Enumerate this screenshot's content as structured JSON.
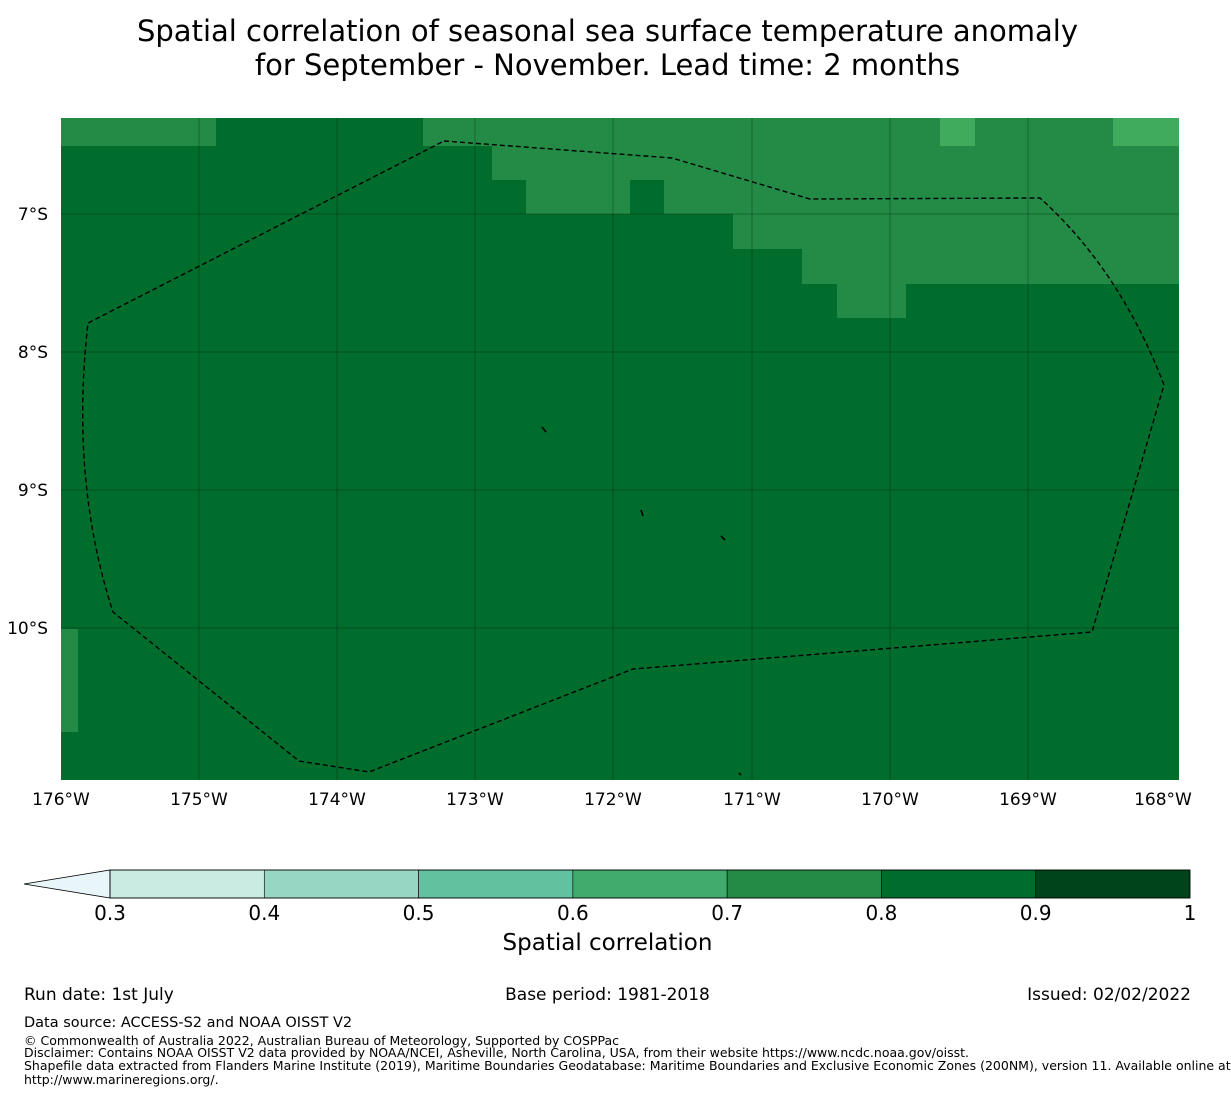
{
  "title_line1": "Spatial correlation of seasonal sea surface temperature anomaly",
  "title_line2": "for September - November. Lead time: 2 months",
  "map": {
    "lat_labels": [
      "7°S",
      "8°S",
      "9°S",
      "10°S"
    ],
    "lon_labels": [
      "176°W",
      "175°W",
      "174°W",
      "173°W",
      "172°W",
      "171°W",
      "170°W",
      "169°W",
      "168°W"
    ],
    "lat_range": [
      -11.1,
      -6.3
    ],
    "lon_range": [
      -176.0,
      -167.9
    ],
    "colors": {
      "corr_0_8_0_9": "#006d2c",
      "corr_0_7_0_8": "#238b45",
      "corr_0_6_0_7": "#41ab5d"
    }
  },
  "colorbar": {
    "ticks": [
      "0.3",
      "0.4",
      "0.5",
      "0.6",
      "0.7",
      "0.8",
      "0.9",
      "1"
    ],
    "colors": [
      "#c9ebe2",
      "#97d6c3",
      "#62c2a0",
      "#41ab6d",
      "#238b45",
      "#006d2c",
      "#00441b"
    ],
    "extend_color": "#e8f5f9",
    "label": "Spatial correlation"
  },
  "footer": {
    "run_date": "Run date: 1st July",
    "base_period": "Base period: 1981-2018",
    "issued": "Issued: 02/02/2022",
    "data_source": "Data source: ACCESS-S2 and NOAA OISST V2",
    "copyright": "© Commonwealth of Australia 2022, Australian Bureau of Meteorology, Supported by COSPPac",
    "disclaimer": "Disclaimer: Contains NOAA OISST V2 data provided by NOAA/NCEI, Asheville, North Carolina, USA, from their website https://www.ncdc.noaa.gov/oisst.",
    "shapefile_line1": "Shapefile data extracted from Flanders Marine Institute (2019), Maritime Boundaries Geodatabase: Maritime Boundaries and Exclusive Economic Zones (200NM), version 11. Available online at",
    "shapefile_line2": "http://www.marineregions.org/."
  }
}
